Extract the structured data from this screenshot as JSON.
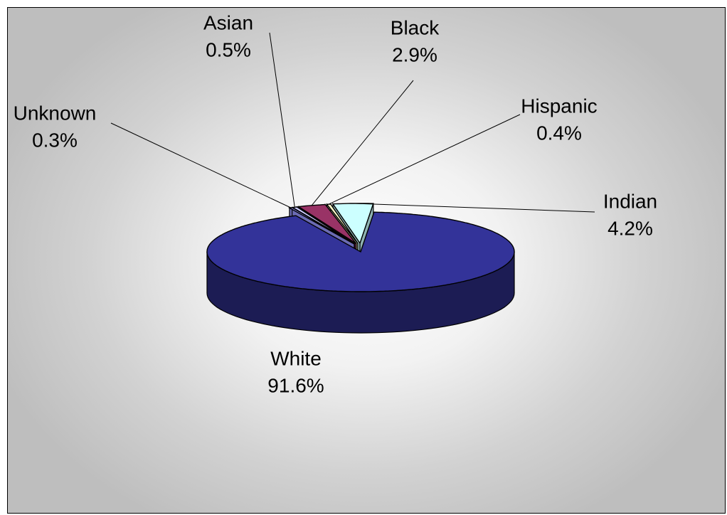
{
  "chart_data": {
    "type": "pie",
    "style": "3d-exploded",
    "slices": [
      {
        "label": "White",
        "value": 91.6,
        "value_label": "91.6%",
        "color": "#333399"
      },
      {
        "label": "Unknown",
        "value": 0.3,
        "value_label": "0.3%",
        "color": "#9999ff"
      },
      {
        "label": "Asian",
        "value": 0.5,
        "value_label": "0.5%",
        "color": "#ccccff"
      },
      {
        "label": "Black",
        "value": 2.9,
        "value_label": "2.9%",
        "color": "#993366"
      },
      {
        "label": "Hispanic",
        "value": 0.4,
        "value_label": "0.4%",
        "color": "#ffffcc"
      },
      {
        "label": "Indian",
        "value": 4.2,
        "value_label": "4.2%",
        "color": "#ccffff"
      }
    ],
    "title": "",
    "legend": "none",
    "data_labels": "outside with leader lines"
  }
}
